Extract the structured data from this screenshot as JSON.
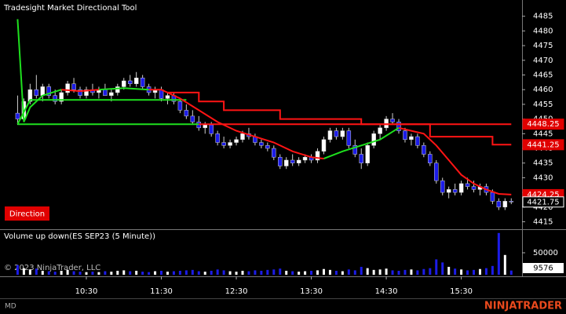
{
  "chart_data": [
    {
      "type": "candlestick",
      "title": "Tradesight Market Directional Tool",
      "annotation": "Direction",
      "x": [
        "09:35",
        "09:40",
        "09:45",
        "09:50",
        "09:55",
        "10:00",
        "10:05",
        "10:10",
        "10:15",
        "10:20",
        "10:25",
        "10:30",
        "10:35",
        "10:40",
        "10:45",
        "10:50",
        "10:55",
        "11:00",
        "11:05",
        "11:10",
        "11:15",
        "11:20",
        "11:25",
        "11:30",
        "11:35",
        "11:40",
        "11:45",
        "11:50",
        "11:55",
        "12:00",
        "12:05",
        "12:10",
        "12:15",
        "12:20",
        "12:25",
        "12:30",
        "12:35",
        "12:40",
        "12:45",
        "12:50",
        "12:55",
        "13:00",
        "13:05",
        "13:10",
        "13:15",
        "13:20",
        "13:25",
        "13:30",
        "13:35",
        "13:40",
        "13:45",
        "13:50",
        "13:55",
        "14:00",
        "14:05",
        "14:10",
        "14:15",
        "14:20",
        "14:25",
        "14:30",
        "14:35",
        "14:40",
        "14:45",
        "14:50",
        "14:55",
        "15:00",
        "15:05",
        "15:10",
        "15:15",
        "15:20",
        "15:25",
        "15:30",
        "15:35",
        "15:40",
        "15:45",
        "15:50",
        "15:55",
        "16:00",
        "16:05",
        "16:10"
      ],
      "open": [
        4452,
        4450,
        4456,
        4460,
        4458,
        4461,
        4458,
        4456,
        4459,
        4462,
        4460,
        4458,
        4460,
        4459,
        4460,
        4458,
        4459,
        4461,
        4463,
        4462,
        4464,
        4461,
        4459,
        4460,
        4457,
        4458,
        4456,
        4453,
        4451,
        4449,
        4447,
        4448,
        4445,
        4442,
        4441,
        4442,
        4443,
        4445,
        4444,
        4442,
        4441,
        4440,
        4437,
        4434,
        4436,
        4435,
        4436,
        4437,
        4436,
        4439,
        4443,
        4446,
        4444,
        4446,
        4441,
        4438,
        4435,
        4441,
        4445,
        4447,
        4450,
        4449,
        4446,
        4443,
        4444,
        4441,
        4438,
        4435,
        4429,
        4425,
        4426,
        4425,
        4428,
        4427,
        4426,
        4427,
        4425,
        4422,
        4420,
        4422
      ],
      "high": [
        4458,
        4457,
        4462,
        4465,
        4462,
        4462,
        4460,
        4460,
        4463,
        4464,
        4461,
        4461,
        4462,
        4461,
        4462,
        4460,
        4462,
        4464,
        4465,
        4466,
        4465,
        4462,
        4461,
        4461,
        4459,
        4459,
        4457,
        4455,
        4453,
        4451,
        4449,
        4449,
        4446,
        4444,
        4443,
        4444,
        4446,
        4447,
        4445,
        4443,
        4442,
        4441,
        4438,
        4437,
        4438,
        4437,
        4438,
        4438,
        4440,
        4444,
        4447,
        4447,
        4447,
        4447,
        4443,
        4440,
        4442,
        4446,
        4448,
        4451,
        4452,
        4450,
        4447,
        4445,
        4445,
        4442,
        4439,
        4436,
        4430,
        4427,
        4428,
        4429,
        4430,
        4429,
        4428,
        4428,
        4426,
        4423,
        4423,
        4423
      ],
      "low": [
        4448,
        4449,
        4455,
        4457,
        4456,
        4457,
        4455,
        4455,
        4458,
        4459,
        4457,
        4457,
        4458,
        4457,
        4458,
        4456,
        4458,
        4460,
        4461,
        4461,
        4460,
        4458,
        4457,
        4456,
        4455,
        4455,
        4452,
        4450,
        4448,
        4446,
        4445,
        4444,
        4441,
        4440,
        4440,
        4441,
        4442,
        4443,
        4441,
        4440,
        4439,
        4436,
        4433,
        4433,
        4434,
        4434,
        4435,
        4435,
        4435,
        4438,
        4442,
        4443,
        4443,
        4440,
        4437,
        4433,
        4434,
        4440,
        4443,
        4446,
        4448,
        4445,
        4442,
        4441,
        4440,
        4437,
        4434,
        4428,
        4424,
        4423,
        4424,
        4424,
        4426,
        4425,
        4424,
        4424,
        4421,
        4419,
        4419,
        4421
      ],
      "close": [
        4450,
        4456,
        4460,
        4458,
        4461,
        4458,
        4456,
        4459,
        4462,
        4460,
        4458,
        4460,
        4459,
        4460,
        4458,
        4459,
        4461,
        4463,
        4462,
        4464,
        4461,
        4459,
        4460,
        4457,
        4458,
        4456,
        4453,
        4451,
        4449,
        4447,
        4448,
        4445,
        4442,
        4441,
        4442,
        4443,
        4445,
        4444,
        4442,
        4441,
        4440,
        4437,
        4434,
        4436,
        4435,
        4436,
        4437,
        4436,
        4439,
        4443,
        4446,
        4444,
        4446,
        4441,
        4438,
        4435,
        4441,
        4445,
        4447,
        4450,
        4449,
        4446,
        4443,
        4444,
        4441,
        4438,
        4435,
        4429,
        4425,
        4426,
        4425,
        4428,
        4427,
        4426,
        4427,
        4425,
        4422,
        4420,
        4422,
        4421.75
      ],
      "up_color": "#ffffff",
      "down_color": "#1c1ce8",
      "ylim": [
        4413,
        4490
      ],
      "yticks": [
        4415,
        4420,
        4425,
        4430,
        4435,
        4440,
        4445,
        4450,
        4455,
        4460,
        4465,
        4470,
        4475,
        4480,
        4485
      ],
      "xticks": [
        "10:30",
        "11:30",
        "12:30",
        "13:30",
        "14:30",
        "15:30"
      ],
      "lines": [
        {
          "color": "#1ee01e",
          "x": [
            "09:35",
            "12:00"
          ],
          "values": [
            4448.25,
            4448.25
          ]
        },
        {
          "color": "#ff1414",
          "x": [
            "12:00",
            "16:10"
          ],
          "values": [
            4448.25,
            4448.25
          ]
        },
        {
          "color": "#1ee01e",
          "x": [
            "09:35",
            "09:45",
            "11:50"
          ],
          "values": [
            4448.25,
            4456.5,
            4456.5
          ]
        },
        {
          "color": "#ff1414",
          "x": [
            "11:35",
            "12:00",
            "12:00",
            "12:20",
            "12:20",
            "13:05",
            "13:05",
            "14:10",
            "14:10",
            "15:05",
            "15:05",
            "15:55",
            "15:55",
            "16:10"
          ],
          "values": [
            4459,
            4459,
            4456,
            4456,
            4453,
            4453,
            4450,
            4450,
            4448.25,
            4448.25,
            4444,
            4444,
            4441.25,
            4441.25
          ]
        },
        {
          "color": "#1ee01e",
          "x": [
            "09:35",
            "09:40",
            "09:45",
            "09:55",
            "10:10",
            "10:25",
            "10:40",
            "11:00",
            "11:20",
            "12:30",
            "13:40",
            "13:55",
            "14:10",
            "14:25",
            "14:40"
          ],
          "values": [
            4484,
            4449,
            4454,
            4458,
            4460,
            null,
            4460,
            4460.5,
            4460,
            null,
            4436.5,
            4439,
            4441,
            4443,
            4447
          ]
        },
        {
          "color": "#ff1414",
          "x": [
            "10:10",
            "10:25",
            "10:40",
            "11:00",
            "11:20",
            "11:30",
            "11:45",
            "12:00",
            "12:15",
            "12:30",
            "12:45",
            "13:00",
            "13:15",
            "13:30",
            "13:40",
            "14:10",
            "14:40",
            "14:50",
            "15:00",
            "15:10",
            "15:20",
            "15:30",
            "15:40",
            "15:50",
            "16:00",
            "16:10"
          ],
          "values": [
            4460,
            4459.5,
            4460,
            null,
            4460,
            4460,
            4457,
            4453,
            4449,
            4446,
            4444,
            4442,
            4439,
            4437,
            4436.5,
            null,
            4447,
            4446,
            4445,
            4441,
            4436,
            4431,
            4428,
            4426,
            4424.5,
            4424.25
          ]
        }
      ]
    },
    {
      "type": "volume",
      "title": "Volume up down(ES SEP23 (5 Minute))",
      "annotation": "© 2023 NinjaTrader, LLC",
      "values": [
        22000,
        15000,
        12000,
        14000,
        9000,
        8000,
        7000,
        9000,
        11000,
        8000,
        7000,
        6000,
        7000,
        6000,
        8000,
        7000,
        9000,
        10000,
        8000,
        9000,
        7000,
        6000,
        8000,
        9000,
        7000,
        8000,
        9000,
        10000,
        11000,
        8000,
        7000,
        9000,
        12000,
        10000,
        8000,
        7000,
        9000,
        8000,
        10000,
        9000,
        11000,
        12000,
        14000,
        9000,
        8000,
        7000,
        8000,
        9000,
        10000,
        13000,
        11000,
        9000,
        8000,
        12000,
        10000,
        18000,
        15000,
        11000,
        12000,
        14000,
        10000,
        9000,
        11000,
        12000,
        10000,
        13000,
        15000,
        35000,
        28000,
        18000,
        14000,
        12000,
        10000,
        11000,
        13000,
        15000,
        20000,
        95000,
        45000,
        9576
      ],
      "ylim": [
        0,
        100000
      ],
      "yticks": [
        50000
      ]
    }
  ],
  "footer": {
    "status": "MD",
    "brand": "NINJATRADER"
  }
}
